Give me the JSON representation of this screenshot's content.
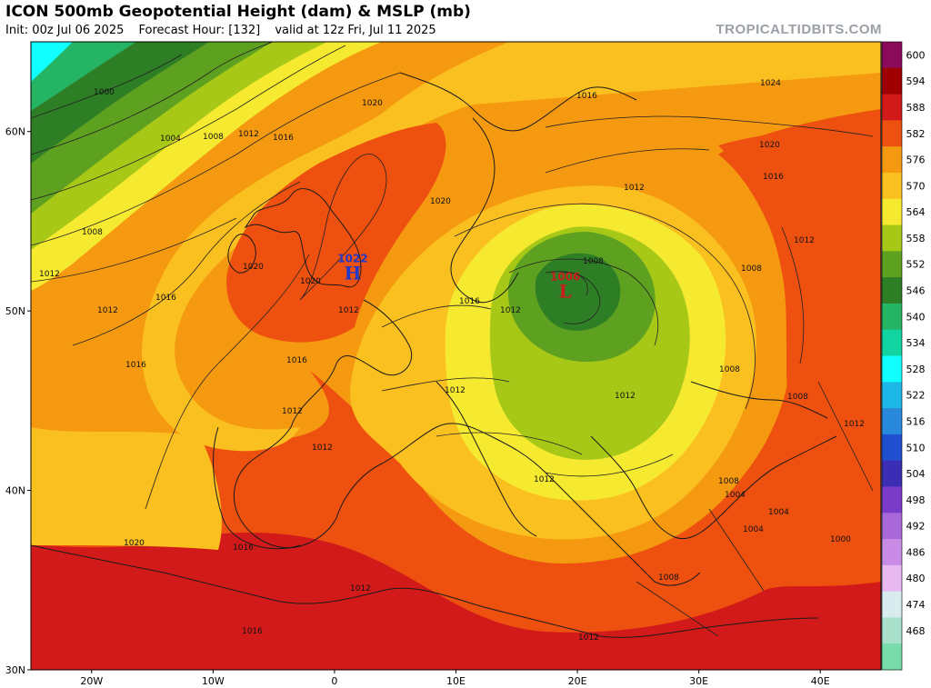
{
  "header": {
    "title": "ICON 500mb Geopotential Height (dam) & MSLP (mb)",
    "init": "Init: 00z Jul 06 2025",
    "forecast_hour": "Forecast Hour: [132]",
    "valid": "valid at 12z Fri, Jul 11 2025",
    "brand": "TROPICALTIDBITS.COM"
  },
  "axes": {
    "lon_labels": [
      "20W",
      "10W",
      "0",
      "10E",
      "20E",
      "30E",
      "40E"
    ],
    "lon_values": [
      -20,
      -10,
      0,
      10,
      20,
      30,
      40
    ],
    "lat_labels": [
      "60N",
      "50N",
      "40N",
      "30N"
    ],
    "lat_values": [
      60,
      50,
      40,
      30
    ],
    "lon_range": [
      -25,
      45
    ],
    "lat_range": [
      30,
      65
    ]
  },
  "colorbar": {
    "labels": [
      "600",
      "594",
      "588",
      "582",
      "576",
      "570",
      "564",
      "558",
      "552",
      "546",
      "540",
      "534",
      "528",
      "522",
      "516",
      "510",
      "504",
      "498",
      "492",
      "486",
      "480",
      "474",
      "468"
    ],
    "colors": [
      "#8b0a5a",
      "#a00000",
      "#d21a1a",
      "#ee5010",
      "#f59a10",
      "#fac020",
      "#f6ea30",
      "#a8c818",
      "#5ea020",
      "#2e7e26",
      "#24b464",
      "#12d4a0",
      "#12ffff",
      "#1eb8e8",
      "#2888dc",
      "#2050d0",
      "#3c2eb4",
      "#7a3cc8",
      "#a868d8",
      "#c88ce6",
      "#e8b8f0",
      "#d8ecf0",
      "#a8e0cc",
      "#78dcaa"
    ]
  },
  "isobar_labels": [
    "1000",
    "1004",
    "1008",
    "1012",
    "1016",
    "1020",
    "1024",
    "1016",
    "1012",
    "1008",
    "1012",
    "1016",
    "1020",
    "1020",
    "1020",
    "1016",
    "1012",
    "1012",
    "1012",
    "1016",
    "1020",
    "1016",
    "1012",
    "1012",
    "1012",
    "1016",
    "1012",
    "1008",
    "1008",
    "1012",
    "1016",
    "1020",
    "1012",
    "1008",
    "1012",
    "1008",
    "1008",
    "1004",
    "1004",
    "1000",
    "1004",
    "1012",
    "1008",
    "1012",
    "1016"
  ],
  "pressure_centers": [
    {
      "type": "H",
      "value": "1022",
      "lon": 1.5,
      "lat": 52
    },
    {
      "type": "L",
      "value": "1006",
      "lon": 19,
      "lat": 51
    }
  ],
  "colors": {
    "H": "#2438c8",
    "L": "#c81e1e",
    "brand_gray": "#9aa0a6"
  }
}
